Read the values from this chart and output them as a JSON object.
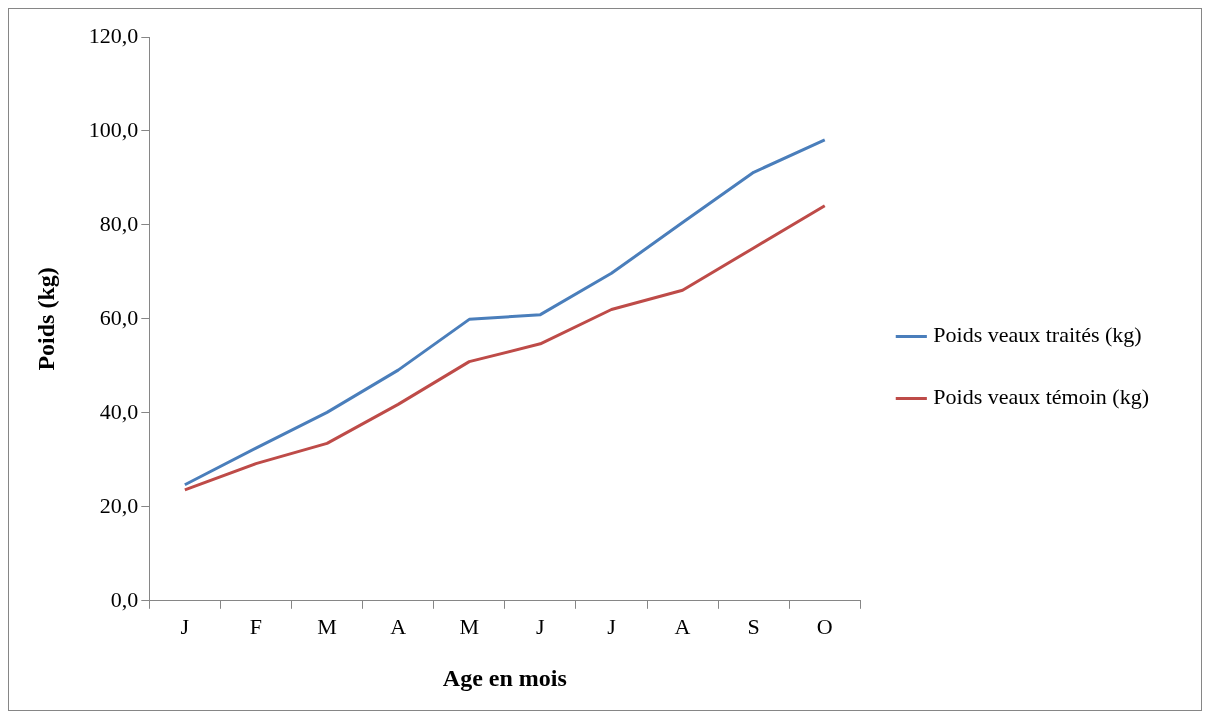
{
  "chart_data": {
    "type": "line",
    "xlabel": "Age en mois",
    "ylabel": "Poids (kg)",
    "categories": [
      "J",
      "F",
      "M",
      "A",
      "M",
      "J",
      "J",
      "A",
      "S",
      "O"
    ],
    "series": [
      {
        "name": "Poids veaux traités (kg)",
        "color": "#4a7ebb",
        "values": [
          24.7,
          32.5,
          40.1,
          49.1,
          59.9,
          60.9,
          69.7,
          80.5,
          91.2,
          98.1
        ]
      },
      {
        "name": "Poids veaux témoin (kg)",
        "color": "#be4b48",
        "values": [
          23.6,
          29.2,
          33.5,
          41.8,
          50.9,
          54.7,
          62.0,
          66.1,
          75.1,
          84.1
        ]
      }
    ],
    "ylim": [
      0,
      120
    ],
    "yticks": [
      {
        "value": 0,
        "label": "0,0"
      },
      {
        "value": 20,
        "label": "20,0"
      },
      {
        "value": 40,
        "label": "40,0"
      },
      {
        "value": 60,
        "label": "60,0"
      },
      {
        "value": 80,
        "label": "80,0"
      },
      {
        "value": 100,
        "label": "100,0"
      },
      {
        "value": 120,
        "label": "120,0"
      }
    ],
    "grid": false,
    "legend": "right",
    "marker": "none",
    "line_style": "solid"
  }
}
